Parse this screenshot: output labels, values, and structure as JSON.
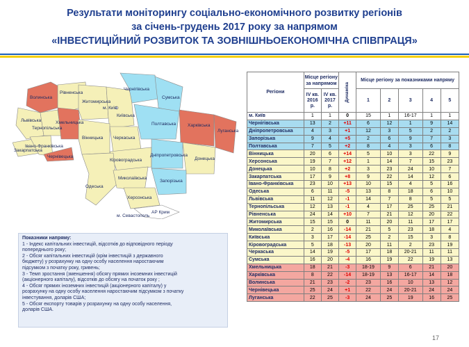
{
  "title": {
    "line1": "Результати моніторингу соціально-економічного розвитку регіонів",
    "line2": "за січень-грудень 2017 року за напрямом",
    "line3": "«ІНВЕСТИЦІЙНИЙ РОЗВИТОК ТА ЗОВНІШНЬОЕКОНОМІЧНА СПІВПРАЦЯ»"
  },
  "map": {
    "labels": {
      "volynska": "Волинська",
      "rivnenska": "Рівненська",
      "chernihivska": "Чернігівська",
      "sumska": "Сумська",
      "lvivska": "Львівська",
      "zhytomyrska": "Житомирська",
      "kyiv": "м. Київ",
      "kyivska": "Київська",
      "kharkivska": "Харківська",
      "luhanska": "Луганська",
      "ternopilska": "Тернопільська",
      "khmelnytska": "Хмельницька",
      "poltavska": "Полтавська",
      "ivanofrankivska": "Івано-Франківська",
      "vinnytska": "Вінницька",
      "cherkaska": "Черкаська",
      "zakarpatska": "Закарпатська",
      "chernivetska": "Чернівецька",
      "kirovohradska": "Кіровоградська",
      "dnipropetrovska": "Дніпропетровська",
      "donetska": "Донецька",
      "mykolaivska": "Миколаївська",
      "zaporizka": "Запорізька",
      "odeska": "Одеська",
      "khersonska": "Херсонська",
      "ark": "АР Крим",
      "sevastopol": "м. Севастополь"
    }
  },
  "legend": {
    "heading": "Показники напряму:",
    "items": [
      "1 - Індекс капітальних інвестицій, відсотків до відповідного періоду",
      "попереднього року;",
      "2 - Обсяг капітальних інвестицій (крім інвестицій з державного",
      "бюджету) у розрахунку на одну особу населення наростаючим",
      "підсумком з початку року, гривень;",
      "3 - Темп зростання (зменшення) обсягу прямих іноземних інвестицій",
      "(акціонерного капіталу), відсотків до обсягу на початок року ;",
      "4 - Обсяг прямих іноземних інвестицій (акціонерного капіталу) у",
      "розрахунку на одну особу населення наростаючим підсумком з початку",
      "інвестування, доларів США;",
      "5 - Обсяг експорту товарів у розрахунку на одну особу населення,",
      "доларів США."
    ]
  },
  "table": {
    "headers": {
      "regions": "Регіони",
      "place_group": "Місце регіону за напрямом",
      "q4_2016": "IV кв. 2016 р.",
      "q4_2017": "IV кв. 2017 р.",
      "dynamics": "Динаміка",
      "indicators_group": "Місце регіону за показниками напряму",
      "ind": [
        "1",
        "2",
        "3",
        "4",
        "5"
      ]
    },
    "rows": [
      {
        "region": "м. Київ",
        "p16": "1",
        "p17": "1",
        "dyn": "0",
        "c1": "15",
        "c2": "1",
        "c3": "16-17",
        "c4": "1",
        "c5": "1",
        "color": "#ffffff"
      },
      {
        "region": "Чернігівська",
        "p16": "13",
        "p17": "2",
        "dyn": "+11",
        "c1": "6",
        "c2": "12",
        "c3": "1",
        "c4": "9",
        "c5": "14",
        "color": "#a8dcf0"
      },
      {
        "region": "Дніпропетровська",
        "p16": "4",
        "p17": "3",
        "dyn": "+1",
        "c1": "12",
        "c2": "3",
        "c3": "5",
        "c4": "2",
        "c5": "2",
        "color": "#a8dcf0"
      },
      {
        "region": "Запорізька",
        "p16": "9",
        "p17": "4",
        "dyn": "+5",
        "c1": "2",
        "c2": "6",
        "c3": "9",
        "c4": "7",
        "c5": "3",
        "color": "#a8dcf0"
      },
      {
        "region": "Полтавська",
        "p16": "7",
        "p17": "5",
        "dyn": "+2",
        "c1": "8",
        "c2": "4",
        "c3": "3",
        "c4": "6",
        "c5": "8",
        "color": "#a8dcf0"
      },
      {
        "region": "Вінницька",
        "p16": "20",
        "p17": "6",
        "dyn": "+14",
        "c1": "5",
        "c2": "10",
        "c3": "3",
        "c4": "22",
        "c5": "9",
        "color": "#fbf7c9"
      },
      {
        "region": "Херсонська",
        "p16": "19",
        "p17": "7",
        "dyn": "+12",
        "c1": "1",
        "c2": "14",
        "c3": "7",
        "c4": "15",
        "c5": "23",
        "color": "#fbf7c9"
      },
      {
        "region": "Донецька",
        "p16": "10",
        "p17": "8",
        "dyn": "+2",
        "c1": "3",
        "c2": "23",
        "c3": "24",
        "c4": "10",
        "c5": "7",
        "color": "#fbf7c9"
      },
      {
        "region": "Закарпатська",
        "p16": "17",
        "p17": "9",
        "dyn": "+8",
        "c1": "9",
        "c2": "22",
        "c3": "14",
        "c4": "12",
        "c5": "6",
        "color": "#fbf7c9"
      },
      {
        "region": "Івано-Франківська",
        "p16": "23",
        "p17": "10",
        "dyn": "+13",
        "c1": "10",
        "c2": "15",
        "c3": "4",
        "c4": "5",
        "c5": "16",
        "color": "#fbf7c9"
      },
      {
        "region": "Одеська",
        "p16": "6",
        "p17": "11",
        "dyn": "-5",
        "c1": "13",
        "c2": "8",
        "c3": "18",
        "c4": "6",
        "c5": "10",
        "color": "#fbf7c9"
      },
      {
        "region": "Львівська",
        "p16": "11",
        "p17": "12",
        "dyn": "-1",
        "c1": "14",
        "c2": "7",
        "c3": "8",
        "c4": "5",
        "c5": "5",
        "color": "#fbf7c9"
      },
      {
        "region": "Тернопільська",
        "p16": "12",
        "p17": "13",
        "dyn": "-1",
        "c1": "4",
        "c2": "17",
        "c3": "25",
        "c4": "25",
        "c5": "21",
        "color": "#fbf7c9"
      },
      {
        "region": "Рівненська",
        "p16": "24",
        "p17": "14",
        "dyn": "+10",
        "c1": "7",
        "c2": "21",
        "c3": "12",
        "c4": "20",
        "c5": "22",
        "color": "#fbf7c9"
      },
      {
        "region": "Житомирська",
        "p16": "15",
        "p17": "15",
        "dyn": "0",
        "c1": "11",
        "c2": "20",
        "c3": "11",
        "c4": "17",
        "c5": "17",
        "color": "#fbf7c9"
      },
      {
        "region": "Миколаївська",
        "p16": "2",
        "p17": "16",
        "dyn": "-14",
        "c1": "21",
        "c2": "5",
        "c3": "23",
        "c4": "18",
        "c5": "4",
        "color": "#fbf7c9"
      },
      {
        "region": "Київська",
        "p16": "3",
        "p17": "17",
        "dyn": "-14",
        "c1": "25",
        "c2": "2",
        "c3": "15",
        "c4": "3",
        "c5": "8",
        "color": "#fbf7c9"
      },
      {
        "region": "Кіровоградська",
        "p16": "5",
        "p17": "18",
        "dyn": "-13",
        "c1": "20",
        "c2": "11",
        "c3": "2",
        "c4": "23",
        "c5": "19",
        "color": "#fbf7c9"
      },
      {
        "region": "Черкаська",
        "p16": "14",
        "p17": "19",
        "dyn": "-5",
        "c1": "17",
        "c2": "18",
        "c3": "20-21",
        "c4": "11",
        "c5": "11",
        "color": "#fbf7c9"
      },
      {
        "region": "Сумська",
        "p16": "16",
        "p17": "20",
        "dyn": "-4",
        "c1": "16",
        "c2": "19",
        "c3": "22",
        "c4": "19",
        "c5": "13",
        "color": "#fbf7c9"
      },
      {
        "region": "Хмельницька",
        "p16": "18",
        "p17": "21",
        "dyn": "-3",
        "c1": "18-19",
        "c2": "9",
        "c3": "6",
        "c4": "21",
        "c5": "20",
        "color": "#f4a7a0"
      },
      {
        "region": "Харківська",
        "p16": "8",
        "p17": "22",
        "dyn": "-14",
        "c1": "18-19",
        "c2": "13",
        "c3": "16-17",
        "c4": "14",
        "c5": "18",
        "color": "#f4a7a0"
      },
      {
        "region": "Волинська",
        "p16": "21",
        "p17": "23",
        "dyn": "-2",
        "c1": "23",
        "c2": "16",
        "c3": "10",
        "c4": "13",
        "c5": "12",
        "color": "#f4a7a0"
      },
      {
        "region": "Чернівецька",
        "p16": "25",
        "p17": "24",
        "dyn": "+1",
        "c1": "22",
        "c2": "24",
        "c3": "20-21",
        "c4": "24",
        "c5": "24",
        "color": "#f4a7a0"
      },
      {
        "region": "Луганська",
        "p16": "22",
        "p17": "25",
        "dyn": "-3",
        "c1": "24",
        "c2": "25",
        "c3": "19",
        "c4": "16",
        "c5": "25",
        "color": "#f4a7a0"
      }
    ]
  },
  "page_number": "17",
  "colors": {
    "title": "#1f3f8f",
    "top_group": "#a8dcf0",
    "mid_group": "#fbf7c9",
    "bottom_group": "#f4a7a0",
    "map_red": "#e2735e",
    "map_blue": "#9fe0f3",
    "map_yellow": "#f5f0b8"
  }
}
